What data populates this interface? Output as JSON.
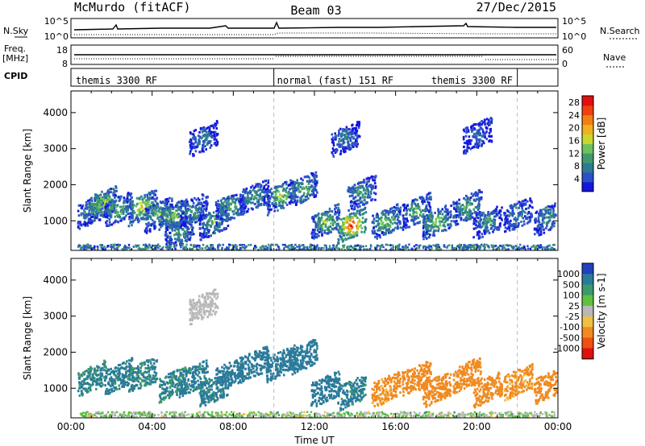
{
  "header": {
    "station": "McMurdo (fitACF)",
    "beam": "Beam 03",
    "date": "27/Dec/2015"
  },
  "strips": {
    "nsky_label": "N.Sky",
    "nsky_ticks": [
      "10^5",
      "10^0"
    ],
    "nsearch_label": "N.Search",
    "nsearch_ticks": [
      "10^5",
      "10^0"
    ],
    "freq_label_1": "Freq.",
    "freq_label_2": "[MHz]",
    "freq_ticks": [
      "18",
      "8"
    ],
    "nave_label": "Nave",
    "nave_ticks": [
      "60",
      "0"
    ],
    "cpid_label": "CPID",
    "cpid_segments": [
      {
        "label": "themis 3300 RF",
        "start": 0,
        "end": 10
      },
      {
        "label": "normal (fast) 151 RF",
        "start": 10,
        "end": 22
      },
      {
        "label": "themis 3300 RF",
        "start": 22,
        "end": 24
      }
    ]
  },
  "colors": {
    "power": [
      "#1515e0",
      "#2b50c8",
      "#2d7a95",
      "#3f9a6e",
      "#6fc25a",
      "#c8d82a",
      "#f0b020",
      "#f08010",
      "#f04010",
      "#e01010"
    ],
    "velocity_positive": [
      "#2040c0",
      "#2a7a9a",
      "#3a9a6a",
      "#5fc040"
    ],
    "velocity_ground": "#b8b8b8",
    "velocity_negative": [
      "#f0c040",
      "#f08a20",
      "#f05010",
      "#e01010"
    ]
  },
  "chart_data": [
    {
      "type": "heatmap",
      "title": "Power",
      "xlabel": "Time UT",
      "ylabel": "Slant Range [km]",
      "xlim": [
        0,
        24
      ],
      "ylim": [
        180,
        4600
      ],
      "xticks": [
        "00:00",
        "04:00",
        "08:00",
        "12:00",
        "16:00",
        "20:00",
        "00:00"
      ],
      "yticks": [
        "1000",
        "2000",
        "3000",
        "4000"
      ],
      "colorbar_label": "Power [dB]",
      "colorbar_ticks": [
        "4",
        "8",
        "12",
        "16",
        "20",
        "24",
        "28"
      ],
      "colorbar_range": [
        0,
        30
      ],
      "mode_change_hours": [
        10,
        22
      ],
      "blobs": [
        {
          "t": 1.0,
          "r": 1300,
          "v": 10
        },
        {
          "t": 1.5,
          "r": 1500,
          "v": 16
        },
        {
          "t": 2.3,
          "r": 1350,
          "v": 12
        },
        {
          "t": 3.5,
          "r": 1400,
          "v": 18
        },
        {
          "t": 4.3,
          "r": 1200,
          "v": 12
        },
        {
          "t": 5.0,
          "r": 1150,
          "v": 14
        },
        {
          "t": 5.3,
          "r": 700,
          "v": 10
        },
        {
          "t": 6.0,
          "r": 1300,
          "v": 10
        },
        {
          "t": 7.0,
          "r": 1000,
          "v": 12
        },
        {
          "t": 7.8,
          "r": 1400,
          "v": 12
        },
        {
          "t": 9.0,
          "r": 1700,
          "v": 10
        },
        {
          "t": 10.3,
          "r": 1700,
          "v": 14
        },
        {
          "t": 11.4,
          "r": 1900,
          "v": 12
        },
        {
          "t": 12.5,
          "r": 1000,
          "v": 14
        },
        {
          "t": 13.8,
          "r": 900,
          "v": 26
        },
        {
          "t": 14.3,
          "r": 1800,
          "v": 10
        },
        {
          "t": 15.5,
          "r": 1000,
          "v": 14
        },
        {
          "t": 17.0,
          "r": 1300,
          "v": 12
        },
        {
          "t": 18.0,
          "r": 1000,
          "v": 14
        },
        {
          "t": 19.5,
          "r": 1400,
          "v": 12
        },
        {
          "t": 20.5,
          "r": 1000,
          "v": 10
        },
        {
          "t": 22.0,
          "r": 1200,
          "v": 8
        },
        {
          "t": 23.5,
          "r": 1100,
          "v": 10
        },
        {
          "t": 13.5,
          "r": 3300,
          "v": 8
        },
        {
          "t": 6.5,
          "r": 3300,
          "v": 8
        },
        {
          "t": 20.0,
          "r": 3400,
          "v": 6
        }
      ]
    },
    {
      "type": "heatmap",
      "title": "Velocity",
      "xlabel": "Time UT",
      "ylabel": "Slant Range [km]",
      "xlim": [
        0,
        24
      ],
      "ylim": [
        180,
        4600
      ],
      "xticks": [
        "00:00",
        "04:00",
        "08:00",
        "12:00",
        "16:00",
        "20:00",
        "00:00"
      ],
      "yticks": [
        "1000",
        "2000",
        "3000",
        "4000"
      ],
      "colorbar_label": "Velocity [m s-1]",
      "colorbar_ticks": [
        "1000",
        "500",
        "100",
        "25",
        "-25",
        "-100",
        "-500",
        "-1000"
      ],
      "colorbar_range": [
        -1000,
        1000
      ],
      "mode_change_hours": [
        10,
        22
      ],
      "blobs": [
        {
          "t": 1.0,
          "r": 1300,
          "v": 120
        },
        {
          "t": 2.3,
          "r": 1350,
          "v": 150
        },
        {
          "t": 3.5,
          "r": 1400,
          "v": 120
        },
        {
          "t": 5.0,
          "r": 1150,
          "v": 120
        },
        {
          "t": 6.0,
          "r": 1300,
          "v": 150
        },
        {
          "t": 7.0,
          "r": 1000,
          "v": 150
        },
        {
          "t": 7.8,
          "r": 1400,
          "v": 300
        },
        {
          "t": 9.0,
          "r": 1700,
          "v": 300
        },
        {
          "t": 10.3,
          "r": 1700,
          "v": 250
        },
        {
          "t": 11.4,
          "r": 1900,
          "v": 300
        },
        {
          "t": 12.5,
          "r": 1000,
          "v": 200
        },
        {
          "t": 13.8,
          "r": 900,
          "v": 150
        },
        {
          "t": 15.5,
          "r": 1000,
          "v": -150
        },
        {
          "t": 17.0,
          "r": 1300,
          "v": -200
        },
        {
          "t": 18.0,
          "r": 1000,
          "v": -300
        },
        {
          "t": 19.5,
          "r": 1400,
          "v": -250
        },
        {
          "t": 20.5,
          "r": 1000,
          "v": -200
        },
        {
          "t": 22.0,
          "r": 1200,
          "v": -150
        },
        {
          "t": 23.5,
          "r": 1100,
          "v": -250
        },
        {
          "t": 6.5,
          "r": 3300,
          "v": 0
        }
      ]
    }
  ]
}
